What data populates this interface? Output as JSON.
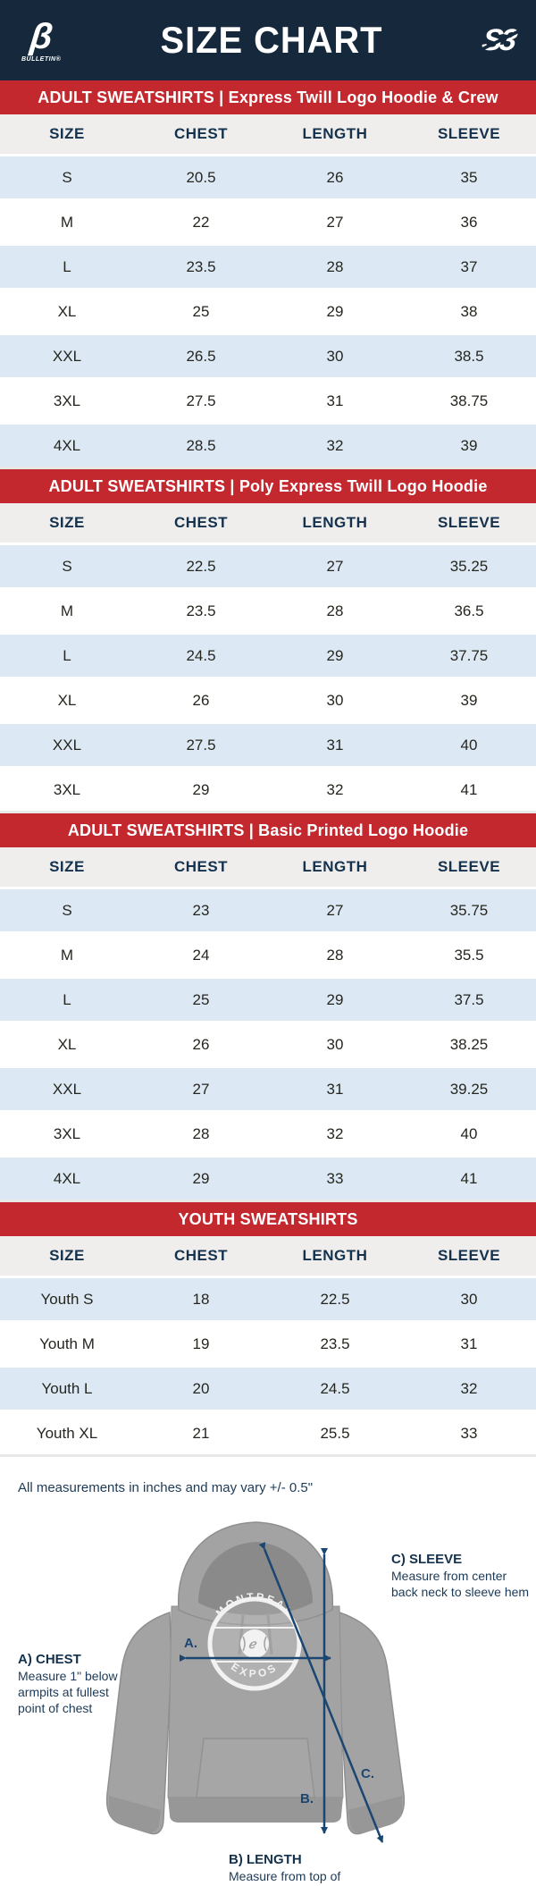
{
  "header": {
    "title": "SIZE CHART",
    "left_logo_glyph": "β",
    "left_logo_text": "BULLETIN®",
    "right_logo_text": "S3"
  },
  "columns": [
    "SIZE",
    "CHEST",
    "LENGTH",
    "SLEEVE"
  ],
  "sections": [
    {
      "banner": "ADULT SWEATSHIRTS | Express Twill Logo Hoodie & Crew",
      "rows": [
        [
          "S",
          "20.5",
          "26",
          "35"
        ],
        [
          "M",
          "22",
          "27",
          "36"
        ],
        [
          "L",
          "23.5",
          "28",
          "37"
        ],
        [
          "XL",
          "25",
          "29",
          "38"
        ],
        [
          "XXL",
          "26.5",
          "30",
          "38.5"
        ],
        [
          "3XL",
          "27.5",
          "31",
          "38.75"
        ],
        [
          "4XL",
          "28.5",
          "32",
          "39"
        ]
      ]
    },
    {
      "banner": "ADULT SWEATSHIRTS | Poly Express Twill Logo Hoodie",
      "rows": [
        [
          "S",
          "22.5",
          "27",
          "35.25"
        ],
        [
          "M",
          "23.5",
          "28",
          "36.5"
        ],
        [
          "L",
          "24.5",
          "29",
          "37.75"
        ],
        [
          "XL",
          "26",
          "30",
          "39"
        ],
        [
          "XXL",
          "27.5",
          "31",
          "40"
        ],
        [
          "3XL",
          "29",
          "32",
          "41"
        ]
      ]
    },
    {
      "banner": "ADULT SWEATSHIRTS | Basic Printed Logo Hoodie",
      "rows": [
        [
          "S",
          "23",
          "27",
          "35.75"
        ],
        [
          "M",
          "24",
          "28",
          "35.5"
        ],
        [
          "L",
          "25",
          "29",
          "37.5"
        ],
        [
          "XL",
          "26",
          "30",
          "38.25"
        ],
        [
          "XXL",
          "27",
          "31",
          "39.25"
        ],
        [
          "3XL",
          "28",
          "32",
          "40"
        ],
        [
          "4XL",
          "29",
          "33",
          "41"
        ]
      ]
    },
    {
      "banner": "YOUTH SWEATSHIRTS",
      "rows": [
        [
          "Youth S",
          "18",
          "22.5",
          "30"
        ],
        [
          "Youth M",
          "19",
          "23.5",
          "31"
        ],
        [
          "Youth L",
          "20",
          "24.5",
          "32"
        ],
        [
          "Youth XL",
          "21",
          "25.5",
          "33"
        ]
      ]
    }
  ],
  "note": "All measurements in inches and may vary +/- 0.5\"",
  "diagram": {
    "logo_top": "MONTREAL",
    "logo_bottom": "EXPOS",
    "marker_a": "A.",
    "marker_b": "B.",
    "marker_c": "C.",
    "chest": {
      "title": "A) CHEST",
      "desc": "Measure 1\" below armpits at fullest point of chest"
    },
    "length": {
      "title": "B) LENGTH",
      "desc": "Measure from top of shoulder to bottom of hem"
    },
    "sleeve": {
      "title": "C) SLEEVE",
      "desc": "Measure from center back neck to sleeve hem"
    }
  },
  "colors": {
    "navy_header": "#15283c",
    "banner_red": "#c2282e",
    "row_blue": "#dce9f5",
    "header_gray": "#efeeec",
    "text_navy": "#14314d",
    "arrow_navy": "#1c4672",
    "hoodie_gray": "#a3a3a3"
  }
}
